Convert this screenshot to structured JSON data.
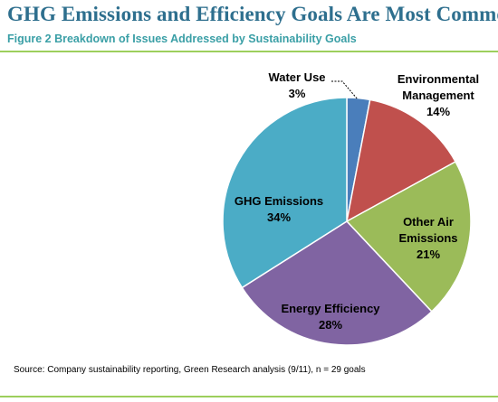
{
  "header": {
    "title": "GHG Emissions and Efficiency Goals Are Most Common",
    "subtitle": "Figure 2 Breakdown of Issues Addressed by Sustainability Goals"
  },
  "footer": {
    "source": "Source: Company sustainability reporting, Green Research analysis (9/11), n = 29 goals"
  },
  "colors": {
    "title": "#2e6f8e",
    "subtitle": "#3a9fa6",
    "rule": "#9ccf5c"
  },
  "chart_data": {
    "type": "pie",
    "title": "",
    "slices": [
      {
        "label": "Water Use",
        "value": 3,
        "value_label": "3%",
        "color": "#4a7ebb"
      },
      {
        "label": "Environmental Management",
        "value": 14,
        "value_label": "14%",
        "color": "#c0504d"
      },
      {
        "label": "Other Air Emissions",
        "value": 21,
        "value_label": "21%",
        "color": "#9bbb59"
      },
      {
        "label": "Energy Efficiency",
        "value": 28,
        "value_label": "28%",
        "color": "#8064a2"
      },
      {
        "label": "GHG Emissions",
        "value": 34,
        "value_label": "34%",
        "color": "#4bacc6"
      }
    ],
    "start_angle_deg": 0,
    "direction": "clockwise",
    "legend": "none",
    "labels": "on-chart"
  }
}
